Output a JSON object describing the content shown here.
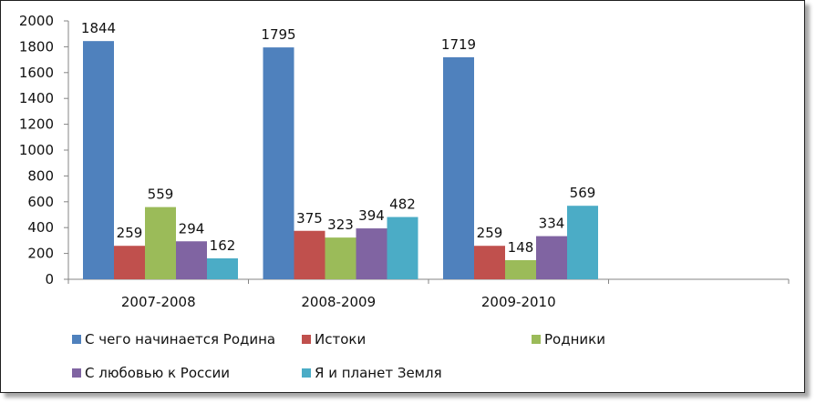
{
  "chart_data": {
    "type": "bar",
    "title": "",
    "xlabel": "",
    "ylabel": "",
    "categories": [
      "2007-2008",
      "2008-2009",
      "2009-2010"
    ],
    "series": [
      {
        "name": "С чего начинается Родина",
        "color": "#4F81BD",
        "values": [
          1844,
          1795,
          1719
        ]
      },
      {
        "name": "Истоки",
        "color": "#C0504D",
        "values": [
          259,
          375,
          259
        ]
      },
      {
        "name": "Родники",
        "color": "#9BBB59",
        "values": [
          559,
          323,
          148
        ]
      },
      {
        "name": "С любовью к России",
        "color": "#8064A2",
        "values": [
          294,
          394,
          334
        ]
      },
      {
        "name": "Я и планет Земля",
        "color": "#4BACC6",
        "values": [
          162,
          482,
          569
        ]
      }
    ],
    "ylim": [
      0,
      2000
    ],
    "yticks": [
      0,
      200,
      400,
      600,
      800,
      1000,
      1200,
      1400,
      1600,
      1800,
      2000
    ],
    "grid": false,
    "legend_position": "bottom"
  }
}
